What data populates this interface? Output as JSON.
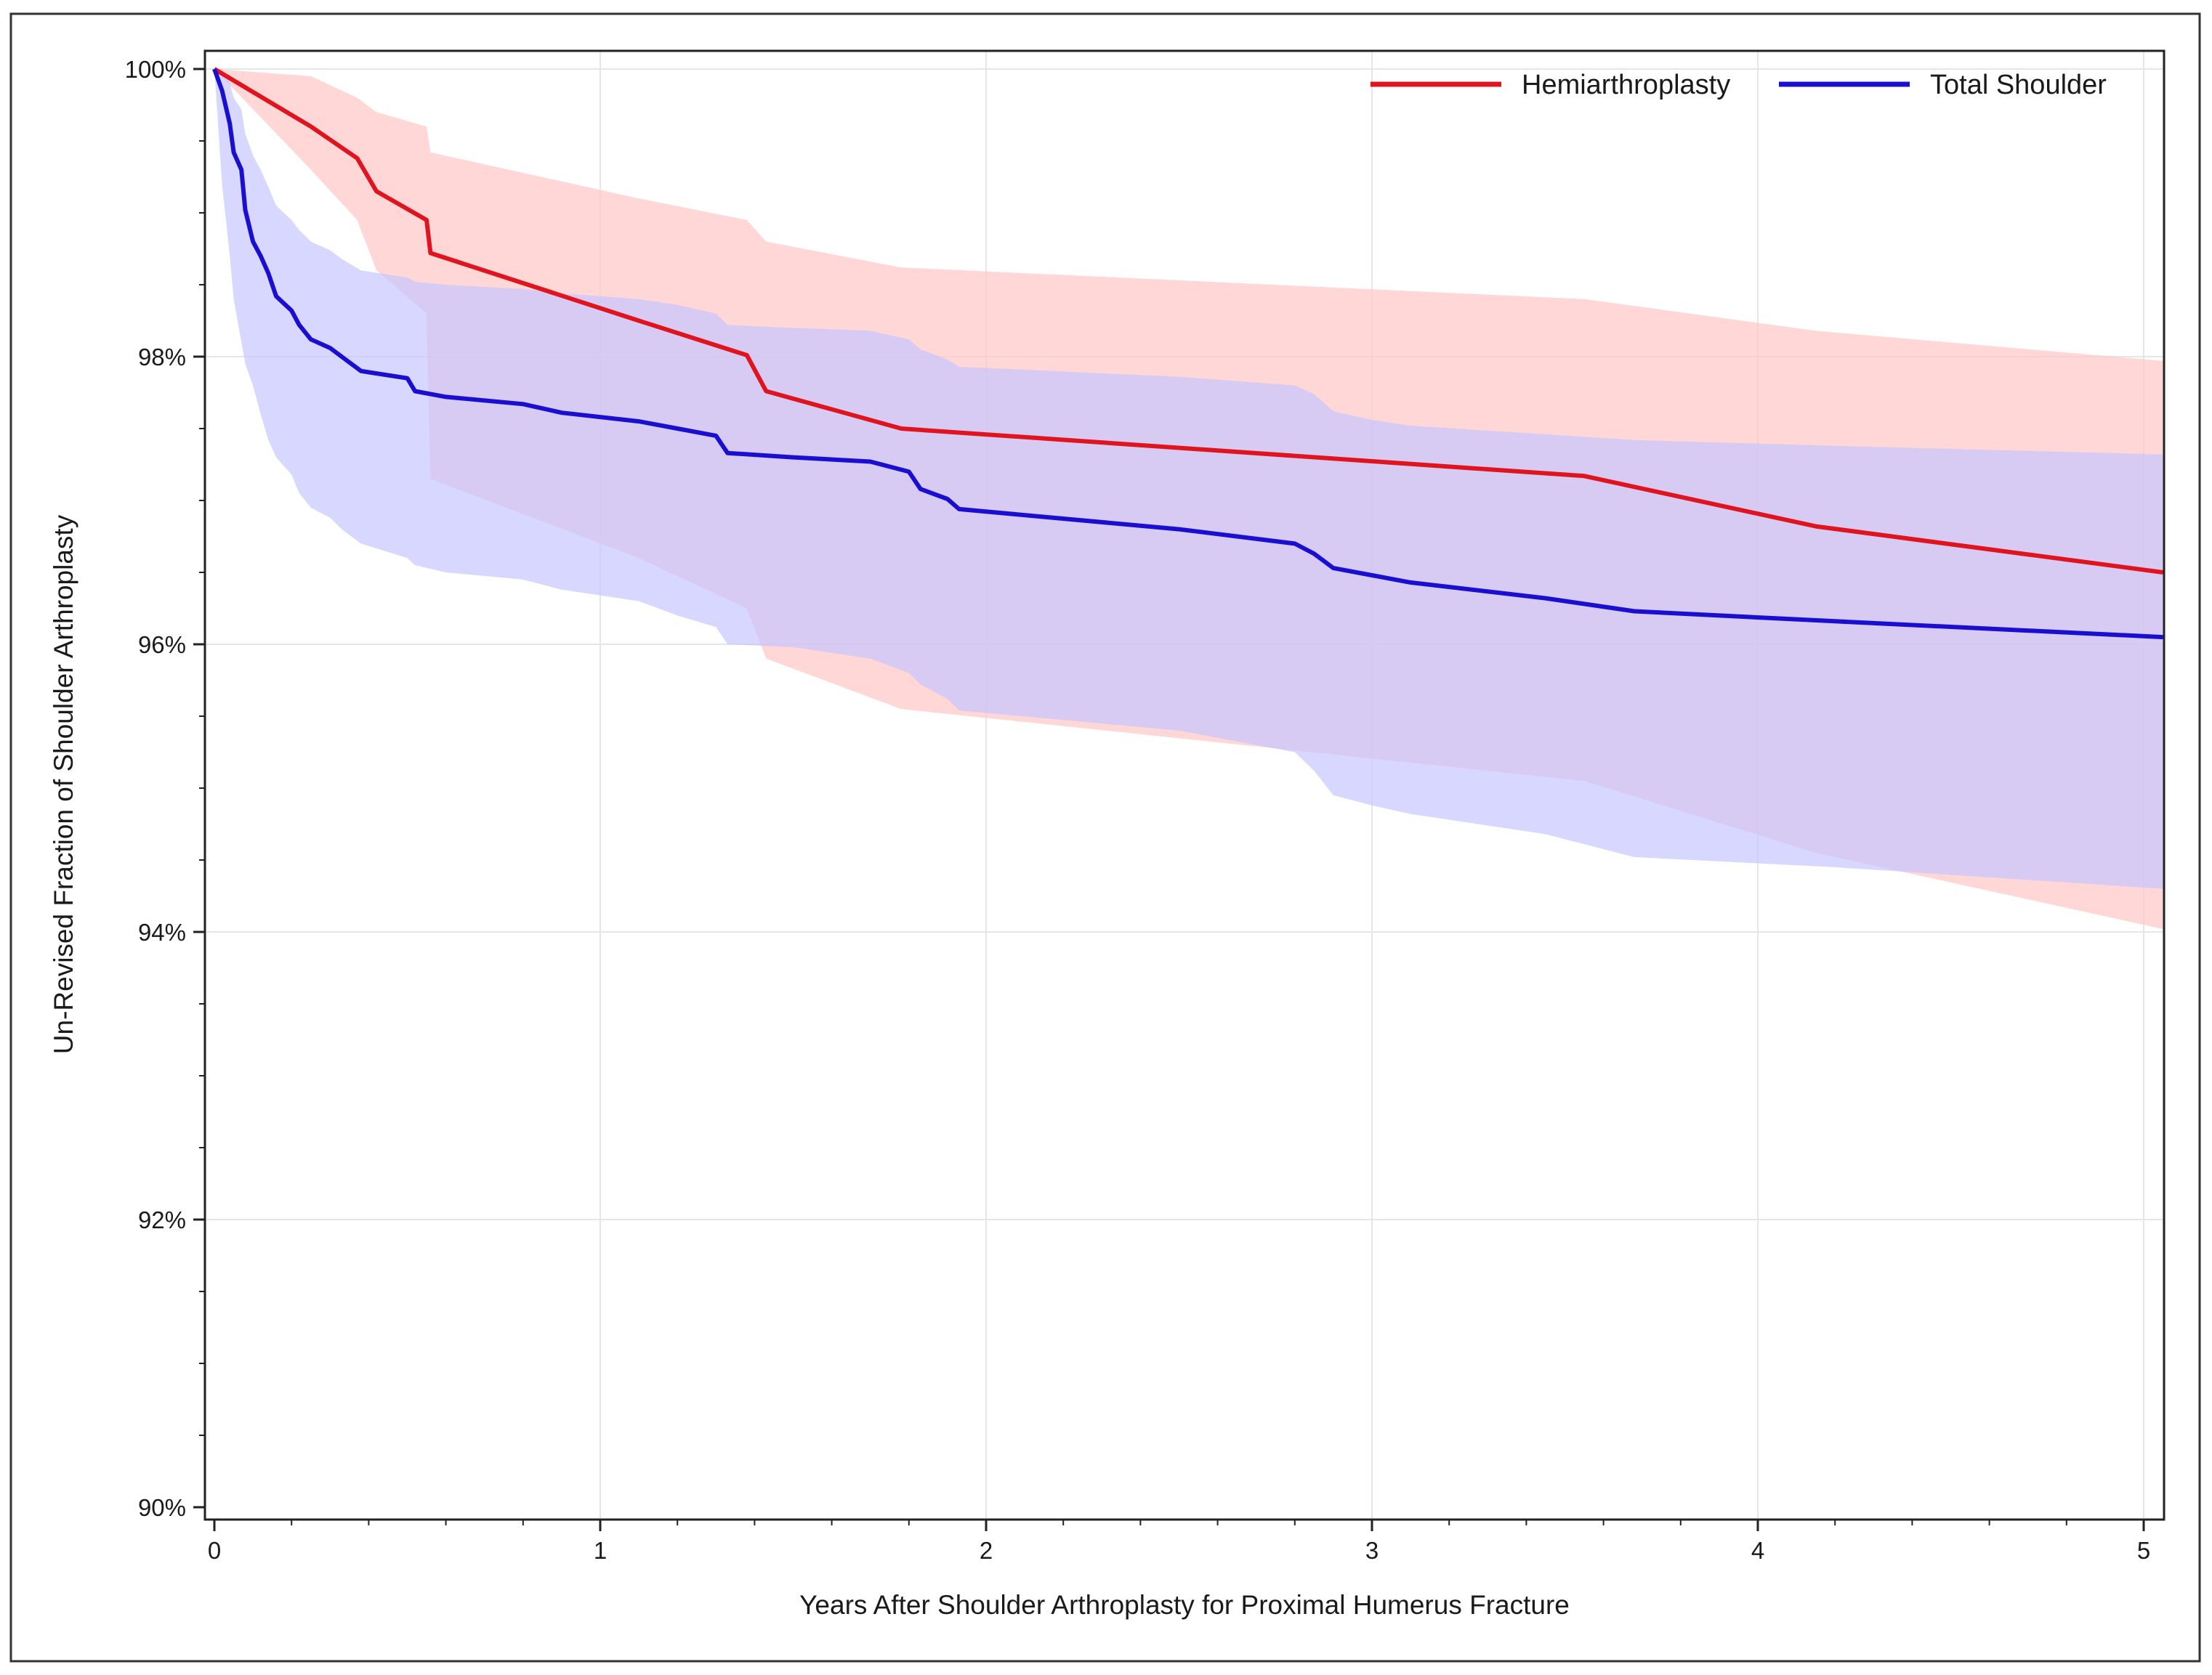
{
  "chart_data": {
    "type": "line",
    "title": "",
    "xlabel": "Years After Shoulder Arthroplasty for Proximal Humerus Fracture",
    "ylabel": "Un-Revised Fraction of Shoulder Arthroplasty",
    "xlim": [
      0,
      5.05
    ],
    "ylim": [
      90,
      100.4
    ],
    "x_ticks": [
      0,
      1,
      2,
      3,
      4,
      5
    ],
    "x_tick_labels": [
      "0",
      "1",
      "2",
      "3",
      "4",
      "5"
    ],
    "y_ticks": [
      90,
      92,
      94,
      96,
      98,
      100
    ],
    "y_tick_labels": [
      "90%",
      "92%",
      "94%",
      "96%",
      "98%",
      "100%"
    ],
    "grid": true,
    "legend": {
      "position": "top-right",
      "entries": [
        "Hemiarthroplasty",
        "Total Shoulder"
      ]
    },
    "series": [
      {
        "name": "Hemiarthroplasty",
        "color": "#e0141e",
        "band_color": "#ffc6c6",
        "x": [
          0,
          0.25,
          0.37,
          0.42,
          0.55,
          0.56,
          1.1,
          1.38,
          1.43,
          1.78,
          3.55,
          4.15,
          5.05
        ],
        "y": [
          100,
          99.6,
          99.38,
          99.15,
          98.95,
          98.72,
          98.25,
          98.01,
          97.76,
          97.5,
          97.17,
          96.82,
          96.5
        ],
        "ci_upper": [
          100,
          99.95,
          99.8,
          99.7,
          99.6,
          99.42,
          99.1,
          98.95,
          98.8,
          98.62,
          98.4,
          98.18,
          97.97
        ],
        "ci_lower": [
          100,
          99.3,
          98.95,
          98.6,
          98.3,
          97.15,
          96.6,
          96.25,
          95.9,
          95.55,
          95.05,
          94.55,
          94.02
        ]
      },
      {
        "name": "Total Shoulder",
        "color": "#1a0fd0",
        "band_color": "#c6c6ff",
        "x": [
          0,
          0.02,
          0.04,
          0.05,
          0.07,
          0.08,
          0.1,
          0.12,
          0.14,
          0.16,
          0.2,
          0.22,
          0.25,
          0.3,
          0.33,
          0.38,
          0.5,
          0.52,
          0.6,
          0.8,
          0.9,
          1.1,
          1.2,
          1.3,
          1.33,
          1.5,
          1.7,
          1.8,
          1.83,
          1.9,
          1.93,
          2.5,
          2.8,
          2.85,
          2.9,
          3.0,
          3.1,
          3.45,
          3.68,
          4.2,
          5.05
        ],
        "y": [
          100,
          99.85,
          99.62,
          99.42,
          99.3,
          99.02,
          98.8,
          98.7,
          98.58,
          98.42,
          98.32,
          98.22,
          98.12,
          98.06,
          98.0,
          97.9,
          97.85,
          97.76,
          97.72,
          97.67,
          97.61,
          97.55,
          97.5,
          97.45,
          97.33,
          97.3,
          97.27,
          97.2,
          97.08,
          97.01,
          96.94,
          96.8,
          96.7,
          96.63,
          96.53,
          96.48,
          96.43,
          96.32,
          96.23,
          96.16,
          96.05
        ],
        "ci_upper": [
          100,
          100,
          99.9,
          99.8,
          99.72,
          99.55,
          99.4,
          99.3,
          99.18,
          99.05,
          98.95,
          98.88,
          98.8,
          98.74,
          98.68,
          98.6,
          98.55,
          98.52,
          98.5,
          98.47,
          98.44,
          98.4,
          98.36,
          98.3,
          98.22,
          98.2,
          98.18,
          98.12,
          98.05,
          97.98,
          97.93,
          97.86,
          97.8,
          97.74,
          97.62,
          97.56,
          97.52,
          97.46,
          97.42,
          97.38,
          97.32
        ],
        "ci_lower": [
          100,
          99.2,
          98.7,
          98.4,
          98.1,
          97.95,
          97.8,
          97.6,
          97.42,
          97.3,
          97.18,
          97.05,
          96.95,
          96.88,
          96.8,
          96.7,
          96.6,
          96.55,
          96.5,
          96.45,
          96.38,
          96.3,
          96.2,
          96.12,
          96.0,
          95.98,
          95.9,
          95.8,
          95.72,
          95.62,
          95.54,
          95.4,
          95.25,
          95.12,
          94.95,
          94.88,
          94.82,
          94.68,
          94.52,
          94.45,
          94.3
        ]
      }
    ]
  }
}
